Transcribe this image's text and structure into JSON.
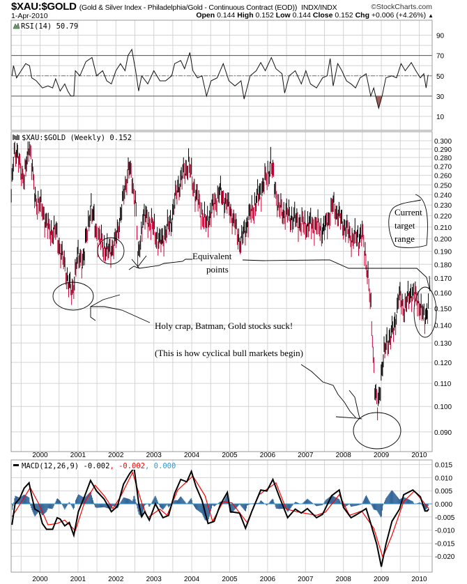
{
  "header": {
    "symbol": "$XAU:$GOLD",
    "description": "(Gold & Silver Index - Philadelphia/Gold - Continuous Contract (EOD))",
    "exchange": "INDX/INDX",
    "copyright": "©StockCharts.com",
    "date": "1-Apr-2010",
    "open_label": "Open",
    "open": "0.144",
    "high_label": "High",
    "high": "0.152",
    "low_label": "Low",
    "low": "0.144",
    "close_label": "Close",
    "close": "0.152",
    "chg_label": "Chg",
    "chg": "+0.006 (+4.26%)",
    "chg_direction_icon": "up-triangle-icon"
  },
  "annotations": {
    "equivalent_1": "Equivalent",
    "equivalent_2": "points",
    "holy_crap": "Holy crap, Batman, Gold stocks suck!",
    "cyclical": "(This is how cyclical bull markets begin)",
    "target_1": "Current",
    "target_2": "target",
    "target_3": "range"
  },
  "colors": {
    "up_bar": "#000000",
    "down_bar": "#cc0033",
    "macd_line": "#000000",
    "signal_line": "#ff0000",
    "histogram": "#336699",
    "histogram_value": "#3399cc",
    "rsi_oversold_fill": "#a0605a"
  },
  "chart_data": [
    {
      "type": "line",
      "panel": "RSI",
      "legend": "RSI(14) 50.79",
      "ylim": [
        0,
        100
      ],
      "yticks": [
        90,
        70,
        50,
        30,
        10
      ],
      "reference_lines": [
        70,
        50,
        30
      ],
      "grid": true,
      "x": [
        1999.26,
        1999.3,
        1999.38,
        1999.5,
        1999.62,
        1999.72,
        1999.78,
        1999.9,
        2000.06,
        2000.21,
        2000.33,
        2000.41,
        2000.53,
        2000.65,
        2000.73,
        2000.81,
        2000.89,
        2000.93,
        2001.05,
        2001.21,
        2001.37,
        2001.49,
        2001.65,
        2001.76,
        2001.88,
        2002.0,
        2002.12,
        2002.24,
        2002.32,
        2002.42,
        2002.52,
        2002.6,
        2002.68,
        2002.84,
        2003.0,
        2003.16,
        2003.31,
        2003.47,
        2003.55,
        2003.71,
        2003.81,
        2003.95,
        2004.03,
        2004.15,
        2004.27,
        2004.39,
        2004.51,
        2004.67,
        2004.83,
        2004.98,
        2005.14,
        2005.3,
        2005.38,
        2005.54,
        2005.7,
        2005.82,
        2005.94,
        2006.1,
        2006.22,
        2006.38,
        2006.45,
        2006.57,
        2006.73,
        2006.89,
        2007.01,
        2007.13,
        2007.29,
        2007.45,
        2007.57,
        2007.65,
        2007.73,
        2007.85,
        2007.96,
        2008.08,
        2008.2,
        2008.32,
        2008.44,
        2008.6,
        2008.72,
        2008.8,
        2008.88,
        2008.93,
        2009.02,
        2009.12,
        2009.28,
        2009.4,
        2009.52,
        2009.63,
        2009.79,
        2009.91,
        2010.03,
        2010.12,
        2010.18,
        2010.23,
        2010.25
      ],
      "values": [
        50,
        60,
        48,
        55,
        62,
        60,
        48,
        45,
        38,
        40,
        38,
        47,
        35,
        42,
        35,
        30,
        30,
        55,
        50,
        64,
        68,
        50,
        55,
        45,
        42,
        55,
        62,
        55,
        70,
        76,
        55,
        35,
        50,
        42,
        55,
        45,
        45,
        50,
        62,
        65,
        57,
        73,
        55,
        48,
        50,
        30,
        45,
        48,
        62,
        45,
        40,
        45,
        27,
        50,
        55,
        63,
        55,
        68,
        57,
        52,
        33,
        50,
        55,
        42,
        55,
        42,
        38,
        48,
        50,
        67,
        40,
        62,
        55,
        45,
        42,
        38,
        48,
        52,
        30,
        38,
        25,
        18,
        30,
        48,
        50,
        48,
        62,
        55,
        63,
        55,
        48,
        52,
        38,
        50,
        50.79
      ]
    },
    {
      "type": "bar",
      "panel": "price",
      "legend": "$XAU:$GOLD (Weekly) 0.152",
      "scale": "log",
      "ylim": [
        0.085,
        0.305
      ],
      "yticks": [
        "0.300",
        "0.290",
        "0.280",
        "0.270",
        "0.260",
        "0.250",
        "0.240",
        "0.230",
        "0.220",
        "0.210",
        "0.200",
        "0.190",
        "0.180",
        "0.170",
        "0.160",
        "0.150",
        "0.140",
        "0.130",
        "0.120",
        "0.110",
        "0.100",
        "0.090"
      ],
      "xticks": [
        "2000",
        "2001",
        "2002",
        "2003",
        "2004",
        "2005",
        "2006",
        "2007",
        "2008",
        "2009",
        "2010"
      ],
      "grid": true,
      "x": [
        1999.24,
        1999.31,
        1999.59,
        1999.72,
        1999.86,
        2000.05,
        2000.23,
        2000.41,
        2000.6,
        2000.84,
        2000.97,
        2001.15,
        2001.33,
        2001.52,
        2001.79,
        2001.98,
        2002.16,
        2002.34,
        2002.53,
        2002.58,
        2002.71,
        2002.9,
        2003.17,
        2003.45,
        2003.63,
        2003.91,
        2004.09,
        2004.37,
        2004.73,
        2005.01,
        2005.29,
        2005.47,
        2005.74,
        2006.02,
        2006.08,
        2006.3,
        2006.66,
        2006.94,
        2007.22,
        2007.49,
        2007.73,
        2007.95,
        2008.23,
        2008.5,
        2008.63,
        2008.74,
        2008.83,
        2008.91,
        2009.02,
        2009.15,
        2009.33,
        2009.46,
        2009.6,
        2009.79,
        2009.97,
        2010.12,
        2010.25
      ],
      "close": [
        0.237,
        0.293,
        0.255,
        0.3,
        0.237,
        0.227,
        0.207,
        0.206,
        0.184,
        0.158,
        0.184,
        0.184,
        0.228,
        0.202,
        0.189,
        0.196,
        0.228,
        0.271,
        0.232,
        0.18,
        0.219,
        0.215,
        0.196,
        0.215,
        0.247,
        0.274,
        0.242,
        0.212,
        0.243,
        0.226,
        0.196,
        0.215,
        0.237,
        0.262,
        0.275,
        0.226,
        0.218,
        0.212,
        0.212,
        0.207,
        0.23,
        0.215,
        0.2,
        0.203,
        0.177,
        0.144,
        0.108,
        0.098,
        0.119,
        0.131,
        0.137,
        0.158,
        0.15,
        0.161,
        0.155,
        0.144,
        0.152
      ]
    },
    {
      "type": "line",
      "panel": "MACD",
      "legend": "MACD(12,26,9)",
      "legend_values": {
        "macd": "-0.002",
        "signal": ", -0.002",
        "histogram": ", 0.000"
      },
      "ylim": [
        -0.0255,
        0.0155
      ],
      "yticks": [
        "0.015",
        "0.010",
        "0.005",
        "0.000",
        "-0.005",
        "-0.010",
        "-0.015",
        "-0.020"
      ],
      "xticks": [
        "2000",
        "2001",
        "2002",
        "2003",
        "2004",
        "2005",
        "2006",
        "2007",
        "2008",
        "2009",
        "2010"
      ],
      "grid": true,
      "series": [
        {
          "x": [
            1999.26,
            1999.34,
            1999.46,
            1999.58,
            1999.71,
            1999.78,
            1999.86,
            1999.98,
            2000.06,
            2000.17,
            2000.33,
            2000.45,
            2000.53,
            2000.65,
            2000.77,
            2000.89,
            2001.01,
            2001.17,
            2001.33,
            2001.49,
            2001.69,
            2001.88,
            2002.04,
            2002.2,
            2002.36,
            2002.48,
            2002.6,
            2002.68,
            2002.76,
            2002.88,
            2003.04,
            2003.24,
            2003.39,
            2003.55,
            2003.71,
            2003.87,
            2003.99,
            2004.11,
            2004.27,
            2004.43,
            2004.59,
            2004.75,
            2004.94,
            2005.02,
            2005.26,
            2005.42,
            2005.58,
            2005.82,
            2005.98,
            2006.14,
            2006.3,
            2006.53,
            2006.73,
            2006.89,
            2007.05,
            2007.29,
            2007.45,
            2007.69,
            2007.89,
            2008.0,
            2008.2,
            2008.36,
            2008.6,
            2008.72,
            2008.88,
            2009.0,
            2009.12,
            2009.28,
            2009.48,
            2009.59,
            2009.83,
            2010.03,
            2010.15,
            2010.21,
            2010.25
          ],
          "values": [
            -0.008,
            0.0,
            0.002,
            0.006,
            0.008,
            0.003,
            -0.002,
            -0.003,
            -0.0075,
            -0.0097,
            -0.0097,
            -0.0053,
            -0.0058,
            -0.0084,
            -0.0071,
            -0.012,
            -0.003,
            0.0027,
            0.0089,
            0.0049,
            0.0018,
            -0.003,
            -0.0009,
            0.0075,
            0.0115,
            0.0137,
            0.0004,
            -0.0049,
            -0.003,
            -0.0062,
            0.0,
            -0.0053,
            -0.0044,
            0.004,
            0.0093,
            0.0084,
            0.0124,
            0.0067,
            0.0013,
            -0.0075,
            -0.0067,
            -0.0004,
            0.0044,
            -0.003,
            -0.0035,
            -0.0093,
            -0.003,
            0.0053,
            0.0049,
            0.0093,
            0.0031,
            -0.0053,
            -0.002,
            -0.0035,
            -0.0018,
            -0.0053,
            -0.004,
            0.0031,
            0.0053,
            -0.0013,
            -0.0053,
            -0.004,
            -0.0018,
            -0.0075,
            -0.0155,
            -0.024,
            -0.0155,
            -0.0067,
            -0.002,
            0.0035,
            0.0053,
            0.0027,
            -0.0027,
            -0.0027,
            -0.002
          ]
        },
        {
          "x": [
            1999.26,
            1999.42,
            1999.74,
            1999.98,
            2000.21,
            2000.45,
            2000.65,
            2000.93,
            2001.17,
            2001.45,
            2001.69,
            2001.92,
            2002.12,
            2002.44,
            2002.68,
            2002.84,
            2003.16,
            2003.35,
            2003.63,
            2004.03,
            2004.35,
            2004.55,
            2004.83,
            2005.06,
            2005.46,
            2005.78,
            2006.22,
            2006.49,
            2006.81,
            2007.29,
            2007.53,
            2007.89,
            2008.16,
            2008.48,
            2008.8,
            2009.04,
            2009.28,
            2009.59,
            2009.87,
            2010.15,
            2010.25
          ],
          "values": [
            -0.0049,
            -0.0013,
            0.0062,
            -0.0004,
            -0.008,
            -0.0075,
            -0.0062,
            -0.0102,
            0.0004,
            0.0071,
            0.0031,
            -0.0018,
            0.0027,
            0.012,
            0.0004,
            -0.0053,
            -0.002,
            -0.0044,
            0.0053,
            0.0106,
            0.0031,
            -0.0067,
            0.0009,
            0.0004,
            -0.0071,
            0.0035,
            0.008,
            -0.002,
            -0.0031,
            -0.0044,
            -0.0031,
            0.0035,
            -0.0044,
            -0.0027,
            -0.0093,
            -0.0204,
            -0.012,
            0.0009,
            0.0049,
            0.0,
            -0.0018
          ]
        }
      ]
    }
  ]
}
